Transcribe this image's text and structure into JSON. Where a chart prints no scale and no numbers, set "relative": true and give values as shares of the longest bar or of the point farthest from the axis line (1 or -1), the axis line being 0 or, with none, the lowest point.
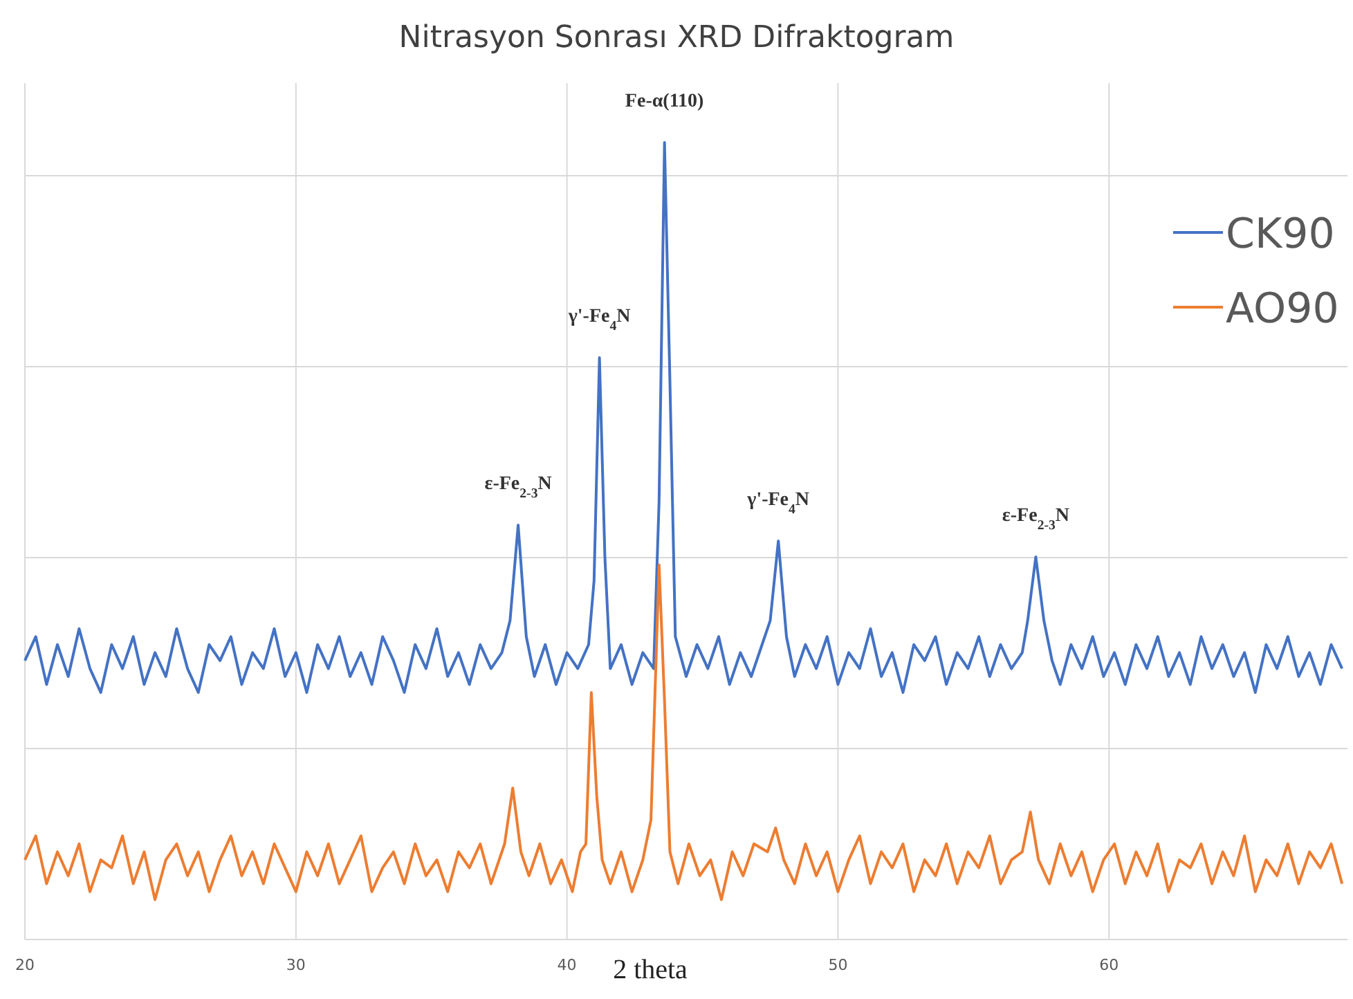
{
  "chart_data": {
    "type": "line",
    "title": "Nitrasyon Sonrası XRD Difraktogram",
    "xlabel": "2 theta",
    "relative": true,
    "xlim": [
      20,
      68.8
    ],
    "xticks": [
      20,
      30,
      40,
      50,
      60
    ],
    "grid": true,
    "legend": "top right",
    "marker": "none",
    "line_style": "solid",
    "annotations": [
      {
        "text": "ε-Fe$_{2-3}$N",
        "x": 38.2,
        "y": 0.52
      },
      {
        "text": "γ'-Fe$_{4}$N",
        "x": 41.2,
        "y": 0.73
      },
      {
        "text": "Fe-α(110)",
        "x": 43.6,
        "y": 1.0
      },
      {
        "text": "γ'-Fe$_{4}$N",
        "x": 47.8,
        "y": 0.5
      },
      {
        "text": "ε-Fe$_{2-3}$N",
        "x": 57.3,
        "y": 0.48
      }
    ],
    "series": [
      {
        "name": "CK90",
        "color": "#4472c4",
        "x": [
          20.0,
          20.4,
          20.8,
          21.2,
          21.6,
          22.0,
          22.4,
          22.8,
          23.2,
          23.6,
          24.0,
          24.4,
          24.8,
          25.2,
          25.6,
          26.0,
          26.4,
          26.8,
          27.2,
          27.6,
          28.0,
          28.4,
          28.8,
          29.2,
          29.6,
          30.0,
          30.4,
          30.8,
          31.2,
          31.6,
          32.0,
          32.4,
          32.8,
          33.2,
          33.6,
          34.0,
          34.4,
          34.8,
          35.2,
          35.6,
          36.0,
          36.4,
          36.8,
          37.2,
          37.6,
          37.9,
          38.2,
          38.5,
          38.8,
          39.2,
          39.6,
          40.0,
          40.4,
          40.8,
          41.0,
          41.2,
          41.4,
          41.6,
          42.0,
          42.4,
          42.8,
          43.2,
          43.4,
          43.6,
          43.8,
          44.0,
          44.4,
          44.8,
          45.2,
          45.6,
          46.0,
          46.4,
          46.8,
          47.2,
          47.5,
          47.8,
          48.1,
          48.4,
          48.8,
          49.2,
          49.6,
          50.0,
          50.4,
          50.8,
          51.2,
          51.6,
          52.0,
          52.4,
          52.8,
          53.2,
          53.6,
          54.0,
          54.4,
          54.8,
          55.2,
          55.6,
          56.0,
          56.4,
          56.8,
          57.0,
          57.3,
          57.6,
          57.9,
          58.2,
          58.6,
          59.0,
          59.4,
          59.8,
          60.2,
          60.6,
          61.0,
          61.4,
          61.8,
          62.2,
          62.6,
          63.0,
          63.4,
          63.8,
          64.2,
          64.6,
          65.0,
          65.4,
          65.8,
          66.2,
          66.6,
          67.0,
          67.4,
          67.8,
          68.2,
          68.6
        ],
        "values": [
          0.35,
          0.38,
          0.32,
          0.37,
          0.33,
          0.39,
          0.34,
          0.31,
          0.37,
          0.34,
          0.38,
          0.32,
          0.36,
          0.33,
          0.39,
          0.34,
          0.31,
          0.37,
          0.35,
          0.38,
          0.32,
          0.36,
          0.34,
          0.39,
          0.33,
          0.36,
          0.31,
          0.37,
          0.34,
          0.38,
          0.33,
          0.36,
          0.32,
          0.38,
          0.35,
          0.31,
          0.37,
          0.34,
          0.39,
          0.33,
          0.36,
          0.32,
          0.37,
          0.34,
          0.36,
          0.4,
          0.52,
          0.38,
          0.33,
          0.37,
          0.32,
          0.36,
          0.34,
          0.37,
          0.45,
          0.73,
          0.48,
          0.34,
          0.37,
          0.32,
          0.36,
          0.34,
          0.55,
          1.0,
          0.7,
          0.38,
          0.33,
          0.37,
          0.34,
          0.38,
          0.32,
          0.36,
          0.33,
          0.37,
          0.4,
          0.5,
          0.38,
          0.33,
          0.37,
          0.34,
          0.38,
          0.32,
          0.36,
          0.34,
          0.39,
          0.33,
          0.36,
          0.31,
          0.37,
          0.35,
          0.38,
          0.32,
          0.36,
          0.34,
          0.38,
          0.33,
          0.37,
          0.34,
          0.36,
          0.4,
          0.48,
          0.4,
          0.35,
          0.32,
          0.37,
          0.34,
          0.38,
          0.33,
          0.36,
          0.32,
          0.37,
          0.34,
          0.38,
          0.33,
          0.36,
          0.32,
          0.38,
          0.34,
          0.37,
          0.33,
          0.36,
          0.31,
          0.37,
          0.34,
          0.38,
          0.33,
          0.36,
          0.32,
          0.37,
          0.34
        ]
      },
      {
        "name": "AO90",
        "color": "#ed7d31",
        "x": [
          20.0,
          20.4,
          20.8,
          21.2,
          21.6,
          22.0,
          22.4,
          22.8,
          23.2,
          23.6,
          24.0,
          24.4,
          24.8,
          25.2,
          25.6,
          26.0,
          26.4,
          26.8,
          27.2,
          27.6,
          28.0,
          28.4,
          28.8,
          29.2,
          29.6,
          30.0,
          30.4,
          30.8,
          31.2,
          31.6,
          32.0,
          32.4,
          32.8,
          33.2,
          33.6,
          34.0,
          34.4,
          34.8,
          35.2,
          35.6,
          36.0,
          36.4,
          36.8,
          37.2,
          37.7,
          38.0,
          38.3,
          38.6,
          39.0,
          39.4,
          39.8,
          40.2,
          40.5,
          40.7,
          40.9,
          41.1,
          41.3,
          41.6,
          42.0,
          42.4,
          42.8,
          43.1,
          43.4,
          43.6,
          43.8,
          44.1,
          44.5,
          44.9,
          45.3,
          45.7,
          46.1,
          46.5,
          46.9,
          47.4,
          47.7,
          48.0,
          48.4,
          48.8,
          49.2,
          49.6,
          50.0,
          50.4,
          50.8,
          51.2,
          51.6,
          52.0,
          52.4,
          52.8,
          53.2,
          53.6,
          54.0,
          54.4,
          54.8,
          55.2,
          55.6,
          56.0,
          56.4,
          56.8,
          57.1,
          57.4,
          57.8,
          58.2,
          58.6,
          59.0,
          59.4,
          59.8,
          60.2,
          60.6,
          61.0,
          61.4,
          61.8,
          62.2,
          62.6,
          63.0,
          63.4,
          63.8,
          64.2,
          64.6,
          65.0,
          65.4,
          65.8,
          66.2,
          66.6,
          67.0,
          67.4,
          67.8,
          68.2,
          68.6
        ],
        "values": [
          0.1,
          0.13,
          0.07,
          0.11,
          0.08,
          0.12,
          0.06,
          0.1,
          0.09,
          0.13,
          0.07,
          0.11,
          0.05,
          0.1,
          0.12,
          0.08,
          0.11,
          0.06,
          0.1,
          0.13,
          0.08,
          0.11,
          0.07,
          0.12,
          0.09,
          0.06,
          0.11,
          0.08,
          0.12,
          0.07,
          0.1,
          0.13,
          0.06,
          0.09,
          0.11,
          0.07,
          0.12,
          0.08,
          0.1,
          0.06,
          0.11,
          0.09,
          0.12,
          0.07,
          0.12,
          0.19,
          0.11,
          0.08,
          0.12,
          0.07,
          0.1,
          0.06,
          0.11,
          0.12,
          0.31,
          0.18,
          0.1,
          0.07,
          0.11,
          0.06,
          0.1,
          0.15,
          0.47,
          0.3,
          0.11,
          0.07,
          0.12,
          0.08,
          0.1,
          0.05,
          0.11,
          0.08,
          0.12,
          0.11,
          0.14,
          0.1,
          0.07,
          0.12,
          0.08,
          0.11,
          0.06,
          0.1,
          0.13,
          0.07,
          0.11,
          0.09,
          0.12,
          0.06,
          0.1,
          0.08,
          0.12,
          0.07,
          0.11,
          0.09,
          0.13,
          0.07,
          0.1,
          0.11,
          0.16,
          0.1,
          0.07,
          0.12,
          0.08,
          0.11,
          0.06,
          0.1,
          0.12,
          0.07,
          0.11,
          0.08,
          0.12,
          0.06,
          0.1,
          0.09,
          0.12,
          0.07,
          0.11,
          0.08,
          0.13,
          0.06,
          0.1,
          0.08,
          0.12,
          0.07,
          0.11,
          0.09,
          0.12,
          0.07
        ]
      }
    ]
  }
}
